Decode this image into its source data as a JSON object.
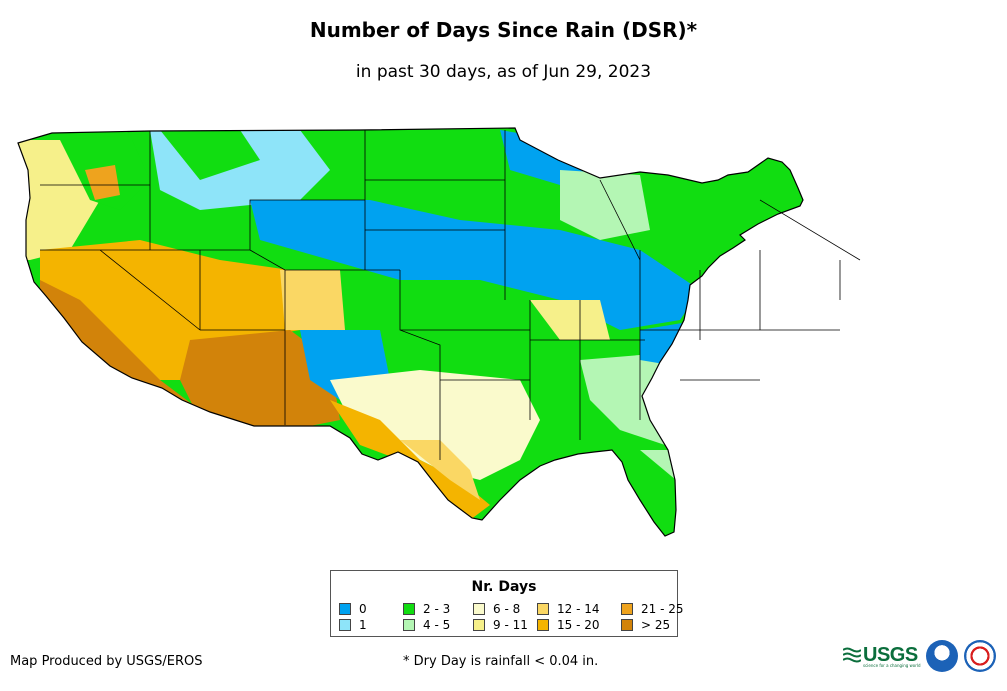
{
  "title": "Number of Days Since Rain (DSR)*",
  "subtitle": "in past 30 days, as of Jun 29, 2023",
  "legend": {
    "title": "Nr. Days",
    "items": [
      {
        "label": "0",
        "color": "#00a2f0"
      },
      {
        "label": "1",
        "color": "#8ee4f9"
      },
      {
        "label": "2 - 3",
        "color": "#11dd11"
      },
      {
        "label": "4 - 5",
        "color": "#b4f6b4"
      },
      {
        "label": "6 - 8",
        "color": "#fafacc"
      },
      {
        "label": "9 - 11",
        "color": "#f6f08a"
      },
      {
        "label": "12 - 14",
        "color": "#fad764"
      },
      {
        "label": "15 - 20",
        "color": "#f4b400"
      },
      {
        "label": "21 - 25",
        "color": "#eea31e"
      },
      {
        "label": "> 25",
        "color": "#d2830a"
      }
    ]
  },
  "producer": "Map Produced by USGS/EROS",
  "footnote": "* Dry Day is rainfall < 0.04 in.",
  "logos": {
    "usgs": "USGS",
    "usgs_tagline": "science for a changing world",
    "noaa": "noaa-seal-icon",
    "nws": "nws-seal-icon"
  }
}
